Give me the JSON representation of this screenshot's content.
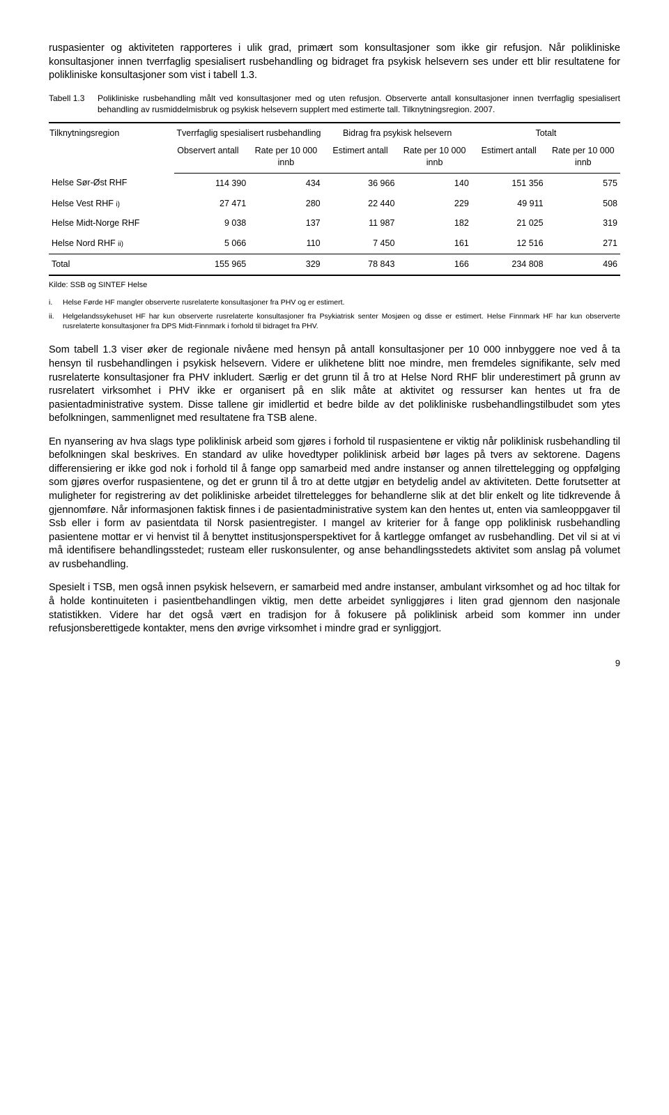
{
  "paragraphs": {
    "p0": "ruspasienter og aktiviteten rapporteres i ulik grad, primært som konsultasjoner som ikke gir refusjon. Når polikliniske konsultasjoner innen tverrfaglig spesialisert rusbehandling og bidraget fra psykisk helsevern ses under ett blir resultatene for polikliniske konsultasjoner som vist i tabell 1.3.",
    "p1": "Som tabell 1.3 viser øker de regionale nivåene med hensyn på antall konsultasjoner per 10 000 innbyggere noe ved å ta hensyn til rusbehandlingen i psykisk helsevern. Videre er ulikhetene blitt noe mindre, men fremdeles signifikante, selv med rusrelaterte konsultasjoner fra PHV inkludert. Særlig er det grunn til å tro at Helse Nord RHF blir underestimert på grunn av rusrelatert virksomhet i PHV ikke er organisert på en slik måte at aktivitet og ressurser kan hentes ut fra de pasientadministrative system. Disse tallene gir imidlertid et bedre bilde av det polikliniske rusbehandlingstilbudet som ytes befolkningen, sammenlignet med resultatene fra TSB alene.",
    "p2": "En nyansering av hva slags type poliklinisk arbeid som gjøres i forhold til ruspasientene er viktig når poliklinisk rusbehandling til befolkningen skal beskrives. En standard av ulike hovedtyper poliklinisk arbeid bør lages på tvers av sektorene. Dagens differensiering er ikke god nok i forhold til å fange opp samarbeid med andre instanser og annen tilrettelegging og oppfølging som gjøres overfor ruspasientene, og det er grunn til å tro at dette utgjør en betydelig andel av aktiviteten. Dette forutsetter at muligheter for registrering av det polikliniske arbeidet tilrettelegges for behandlerne slik at det blir enkelt og lite tidkrevende å gjennomføre. Når informasjonen faktisk finnes i de pasientadministrative system kan den hentes ut, enten via samleoppgaver til Ssb eller i form av pasientdata til Norsk pasientregister. I mangel av kriterier for å fange opp poliklinisk rusbehandling pasientene mottar er vi henvist til å benyttet institusjonsperspektivet for å kartlegge omfanget av rusbehandling. Det vil si at vi må identifisere behandlingsstedet; rusteam eller ruskonsulenter, og anse behandlingsstedets aktivitet som anslag på volumet av rusbehandling.",
    "p3": "Spesielt i TSB, men også innen psykisk helsevern, er samarbeid med andre instanser, ambulant virksomhet og ad hoc tiltak for å holde kontinuiteten i pasientbehandlingen viktig, men dette arbeidet synliggjøres i liten grad gjennom den nasjonale statistikken. Videre har det også vært en tradisjon for å fokusere på poliklinisk arbeid som kommer inn under refusjonsberettigede kontakter, mens den øvrige virksomhet i mindre grad er synliggjort."
  },
  "table": {
    "caption_label": "Tabell 1.3",
    "caption_text": "Polikliniske rusbehandling målt ved konsultasjoner med og uten refusjon. Observerte antall konsultasjoner innen tverrfaglig spesialisert behandling av rusmiddelmisbruk og psykisk helsevern supplert med estimerte tall. Tilknytningsregion. 2007.",
    "group_headers": {
      "g0": "Tilknytningsregion",
      "g1": "Tverrfaglig spesialisert rusbehandling",
      "g2": "Bidrag fra psykisk helsevern",
      "g3": "Totalt"
    },
    "sub_headers": {
      "s1": "Observert antall",
      "s2": "Rate per 10 000 innb",
      "s3": "Estimert antall",
      "s4": "Rate per 10 000 innb",
      "s5": "Estimert antall",
      "s6": "Rate per 10 000 innb"
    },
    "rows": [
      {
        "region": "Helse Sør-Øst RHF",
        "c1": "114 390",
        "c2": "434",
        "c3": "36 966",
        "c4": "140",
        "c5": "151 356",
        "c6": "575",
        "note": ""
      },
      {
        "region": "Helse Vest RHF",
        "c1": "27 471",
        "c2": "280",
        "c3": "22 440",
        "c4": "229",
        "c5": "49 911",
        "c6": "508",
        "note": "i)"
      },
      {
        "region": "Helse Midt-Norge RHF",
        "c1": "9 038",
        "c2": "137",
        "c3": "11 987",
        "c4": "182",
        "c5": "21 025",
        "c6": "319",
        "note": ""
      },
      {
        "region": "Helse Nord RHF",
        "c1": "5 066",
        "c2": "110",
        "c3": "7 450",
        "c4": "161",
        "c5": "12 516",
        "c6": "271",
        "note": "ii)"
      }
    ],
    "total": {
      "region": "Total",
      "c1": "155 965",
      "c2": "329",
      "c3": "78 843",
      "c4": "166",
      "c5": "234 808",
      "c6": "496"
    }
  },
  "kilde": "Kilde: SSB og SINTEF Helse",
  "footnotes": {
    "i": "Helse Førde HF mangler observerte rusrelaterte konsultasjoner fra PHV og er estimert.",
    "ii": "Helgelandssykehuset HF har kun observerte rusrelaterte konsultasjoner fra Psykiatrisk senter Mosjøen og disse er estimert. Helse Finnmark HF har kun observerte rusrelaterte konsultasjoner fra DPS Midt-Finnmark i forhold til bidraget fra PHV."
  },
  "footnote_labels": {
    "i": "i.",
    "ii": "ii."
  },
  "page_number": "9"
}
